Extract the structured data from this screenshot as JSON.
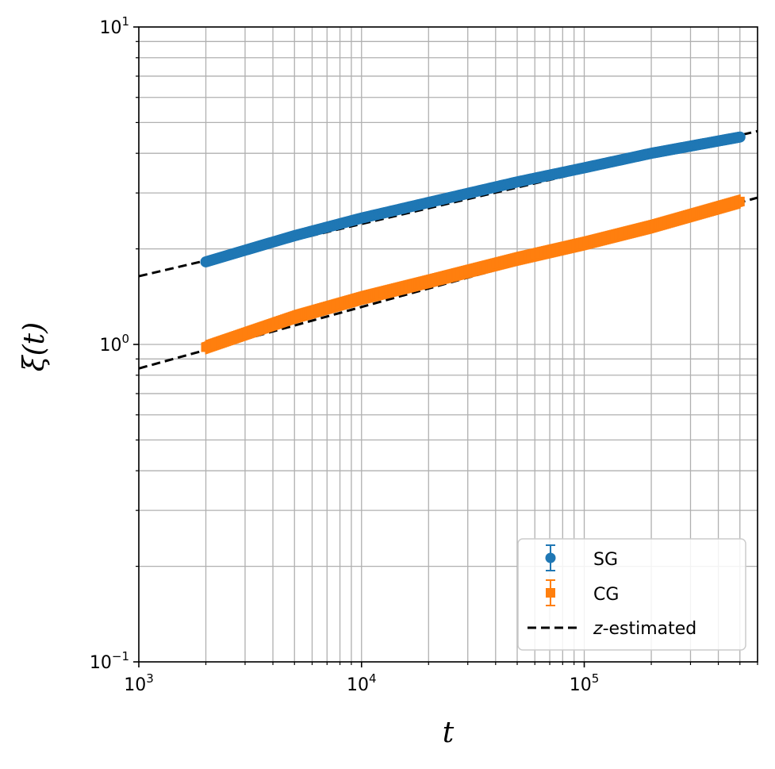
{
  "chart_data": {
    "type": "scatter",
    "xlabel": "t",
    "ylabel": "ξ(t)",
    "xscale": "log",
    "yscale": "log",
    "xlim": [
      1000,
      600000
    ],
    "ylim": [
      0.1,
      10
    ],
    "grid": "major and minor",
    "legend_position": "lower-right",
    "x_ticks": [
      {
        "base": "10",
        "exp": "3"
      },
      {
        "base": "10",
        "exp": "4"
      },
      {
        "base": "10",
        "exp": "5"
      }
    ],
    "y_ticks": [
      {
        "base": "10",
        "exp": "−1"
      },
      {
        "base": "10",
        "exp": "0"
      },
      {
        "base": "10",
        "exp": "1"
      }
    ],
    "series": [
      {
        "name": "SG",
        "marker": "circle",
        "error_bars": true,
        "color": "#1f77b4",
        "x_range": [
          2000,
          500000
        ],
        "x": [
          2000,
          3000,
          5000,
          10000,
          20000,
          50000,
          100000,
          200000,
          500000
        ],
        "y": [
          1.82,
          1.98,
          2.2,
          2.5,
          2.8,
          3.25,
          3.6,
          4.0,
          4.5
        ]
      },
      {
        "name": "CG",
        "marker": "square",
        "error_bars": true,
        "color": "#ff7f0e",
        "x_range": [
          2000,
          500000
        ],
        "x": [
          2000,
          3000,
          5000,
          10000,
          20000,
          50000,
          100000,
          200000,
          500000
        ],
        "y": [
          0.98,
          1.08,
          1.22,
          1.4,
          1.58,
          1.86,
          2.08,
          2.35,
          2.82
        ]
      },
      {
        "name": "z-estimated",
        "name_italic_part": "z",
        "name_rest": "-estimated",
        "style": "dashed",
        "color": "#000000",
        "lines": [
          {
            "x": [
              1000,
              600000
            ],
            "y": [
              1.64,
              4.7
            ]
          },
          {
            "x": [
              1000,
              600000
            ],
            "y": [
              0.84,
              2.9
            ]
          }
        ]
      }
    ]
  }
}
